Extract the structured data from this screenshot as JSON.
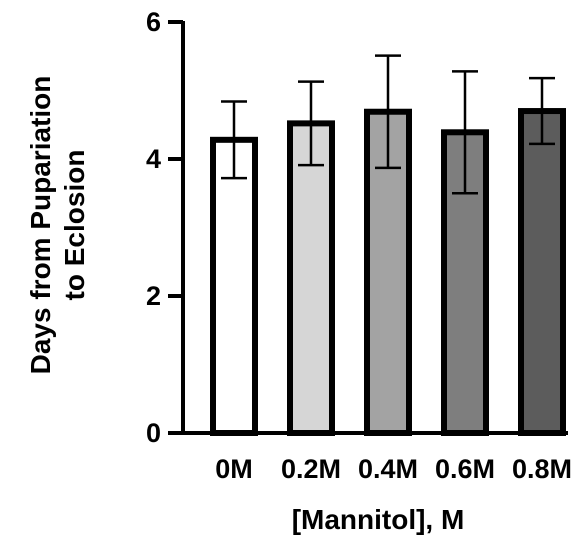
{
  "chart_data": {
    "type": "bar",
    "title": "",
    "categories": [
      "0M",
      "0.2M",
      "0.4M",
      "0.6M",
      "0.8M"
    ],
    "values": [
      4.28,
      4.52,
      4.69,
      4.39,
      4.7
    ],
    "error": [
      0.56,
      0.61,
      0.82,
      0.89,
      0.48
    ],
    "colors": [
      "#ffffff",
      "#d6d6d6",
      "#a3a3a3",
      "#7e7e7e",
      "#5c5c5c"
    ],
    "ylabel_line1": "Days from Pupariation",
    "ylabel_line2": "to Eclosion",
    "xlabel": "[Mannitol], M",
    "ylim": [
      0,
      6
    ],
    "yticks": [
      0,
      2,
      4,
      6
    ],
    "grid": false,
    "legend": "none"
  }
}
